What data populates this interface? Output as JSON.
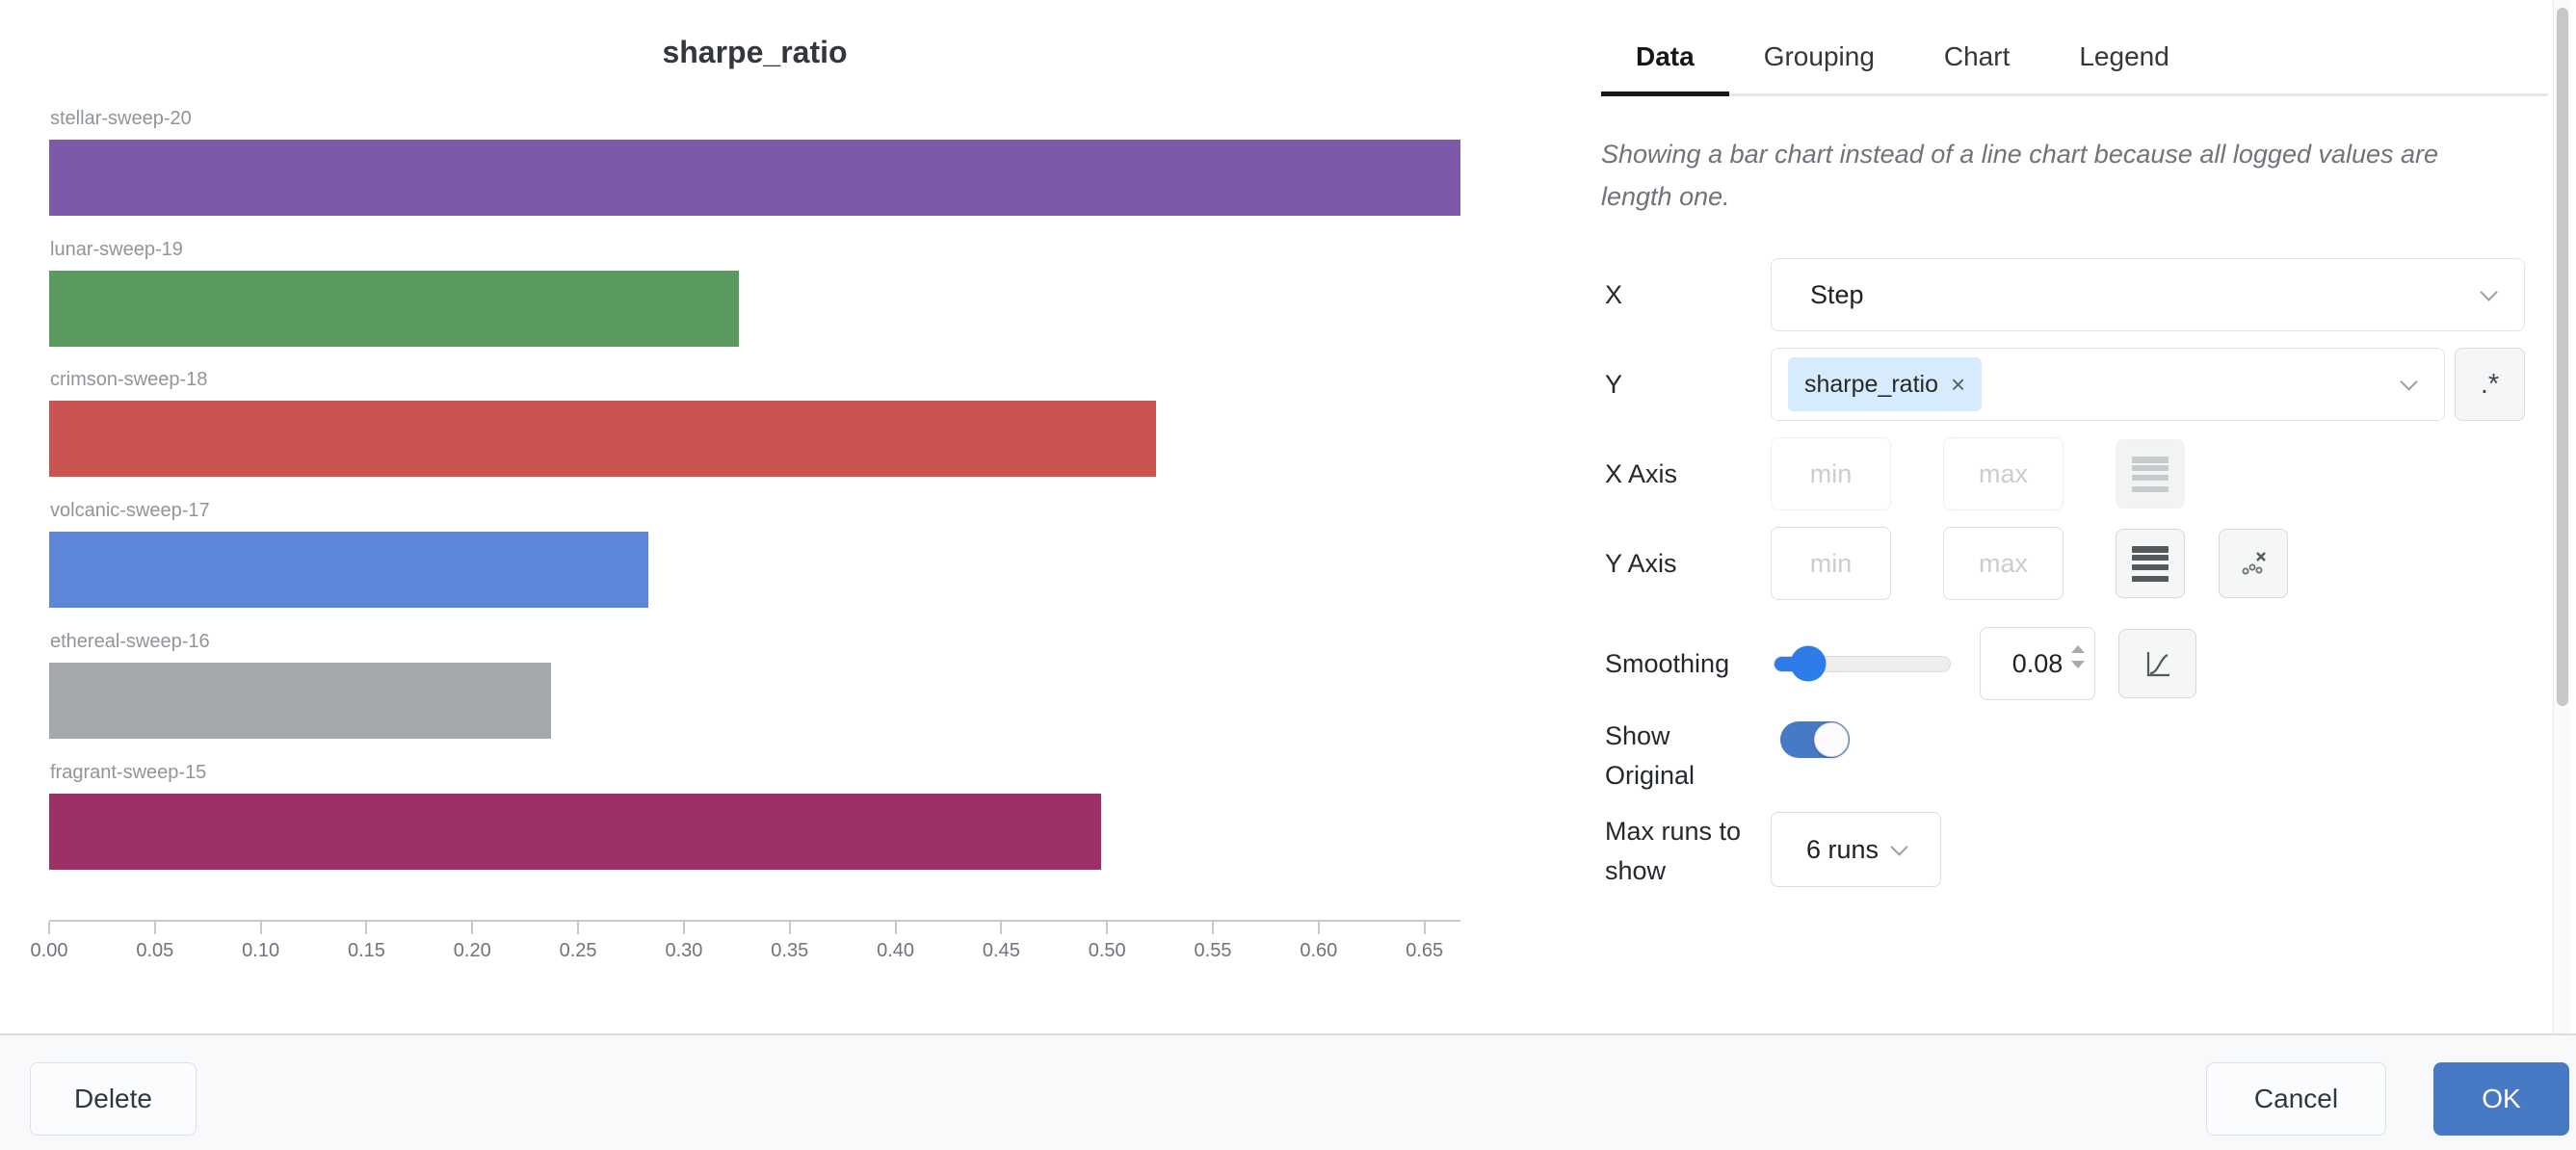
{
  "chart_data": {
    "type": "bar",
    "orientation": "horizontal",
    "title": "sharpe_ratio",
    "categories": [
      "stellar-sweep-20",
      "lunar-sweep-19",
      "crimson-sweep-18",
      "volcanic-sweep-17",
      "ethereal-sweep-16",
      "fragrant-sweep-15"
    ],
    "values": [
      0.667,
      0.326,
      0.523,
      0.283,
      0.237,
      0.497
    ],
    "colors": [
      "#7d59a9",
      "#5b9a5e",
      "#ca544f",
      "#5e86d8",
      "#a3a9aa",
      "#9b3164"
    ],
    "xlabel": "",
    "ylabel": "",
    "xlim": [
      0,
      0.667
    ],
    "x_ticks": [
      "0.00",
      "0.05",
      "0.10",
      "0.15",
      "0.20",
      "0.25",
      "0.30",
      "0.35",
      "0.40",
      "0.45",
      "0.50",
      "0.55",
      "0.60",
      "0.65"
    ],
    "grid": false,
    "legend": false
  },
  "panel": {
    "tabs": [
      {
        "label": "Data",
        "active": true
      },
      {
        "label": "Grouping",
        "active": false
      },
      {
        "label": "Chart",
        "active": false
      },
      {
        "label": "Legend",
        "active": false
      }
    ],
    "note": "Showing a bar chart instead of a line chart because all logged values are length one.",
    "x_field": {
      "label": "X",
      "value": "Step"
    },
    "y_field": {
      "label": "Y",
      "tag": "sharpe_ratio",
      "remove_icon": "×",
      "regex_button": ".*"
    },
    "x_axis": {
      "label": "X Axis",
      "min_placeholder": "min",
      "max_placeholder": "max"
    },
    "y_axis": {
      "label": "Y Axis",
      "min_placeholder": "min",
      "max_placeholder": "max"
    },
    "smoothing": {
      "label": "Smoothing",
      "value": "0.08"
    },
    "show_original": {
      "label": "Show Original",
      "enabled": true
    },
    "max_runs": {
      "label": "Max runs to show",
      "value": "6 runs"
    }
  },
  "footer": {
    "delete_label": "Delete",
    "cancel_label": "Cancel",
    "ok_label": "OK"
  },
  "colors": {
    "accent_blue": "#4879c5",
    "slider_blue": "#2e7ce8",
    "tag_bg": "#d7ebfe",
    "active_tab": "#15181b"
  }
}
